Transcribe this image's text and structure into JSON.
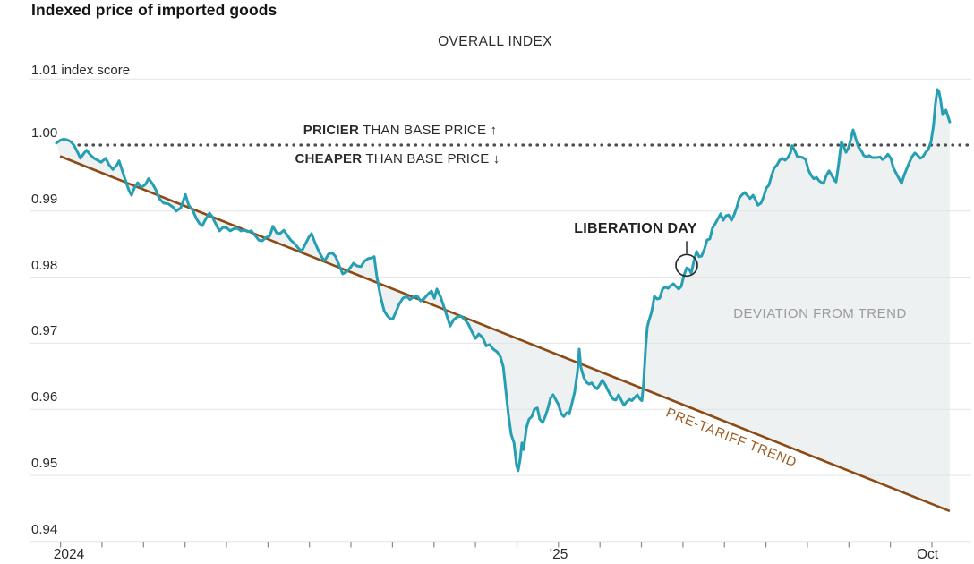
{
  "header": {
    "title": "Indexed price of imported goods",
    "subtitle": "OVERALL INDEX"
  },
  "annotations": {
    "pricier_bold": "PRICIER",
    "pricier_rest": " THAN BASE PRICE ↑",
    "cheaper_bold": "CHEAPER",
    "cheaper_rest": " THAN BASE PRICE ↓",
    "liberation_day": "LIBERATION DAY",
    "deviation": "DEVIATION FROM TREND",
    "pretariff": "PRE-TARIFF TREND"
  },
  "colors": {
    "index_line": "#269fb2",
    "trend_line": "#8c4a14",
    "trend_label": "#9c5a20",
    "deviation_fill": "#edf1f1",
    "gridline": "#e3e3e3",
    "dotted_base_line": "#4d4d4d",
    "axis_tick": "#8a8a8a",
    "marker_stroke": "#2b2b2b"
  },
  "y_axis": {
    "top_label": "1.01 index score",
    "top_value": 1.01,
    "ticks": [
      {
        "label": "1.00",
        "value": 1.0
      },
      {
        "label": "0.99",
        "value": 0.99
      },
      {
        "label": "0.98",
        "value": 0.98
      },
      {
        "label": "0.97",
        "value": 0.97
      },
      {
        "label": "0.96",
        "value": 0.96
      },
      {
        "label": "0.95",
        "value": 0.95
      },
      {
        "label": "0.94",
        "value": 0.94
      }
    ]
  },
  "x_axis": {
    "tick_months": [
      0,
      1,
      2,
      3,
      4,
      5,
      6,
      7,
      8,
      9,
      10,
      11,
      12,
      13,
      14,
      15,
      16,
      17,
      18,
      19,
      20,
      21
    ],
    "labels": [
      {
        "text": "2024",
        "month": 0.2
      },
      {
        "text": "’25",
        "month": 12.0
      },
      {
        "text": "Oct",
        "month": 20.9
      }
    ]
  },
  "chart_data": {
    "type": "line",
    "title": "Indexed price of imported goods",
    "subtitle": "OVERALL INDEX",
    "x_unit": "months since January 2024 (0 = Jan 2024, 12 = Jan 2025, 21 = Oct 2025)",
    "ylabel": "index score",
    "ylim": [
      0.94,
      1.01
    ],
    "base_price_value": 1.0,
    "grid": true,
    "liberation_day_marker": {
      "x": 15.09,
      "value": 0.9818
    },
    "series": [
      {
        "name": "Overall index",
        "color": "#269fb2",
        "x": [
          -0.1,
          -0.01,
          0.07,
          0.16,
          0.25,
          0.33,
          0.42,
          0.48,
          0.57,
          0.63,
          0.72,
          0.81,
          0.89,
          0.98,
          1.09,
          1.17,
          1.26,
          1.35,
          1.41,
          1.5,
          1.58,
          1.65,
          1.71,
          1.78,
          1.86,
          1.95,
          2.04,
          2.12,
          2.21,
          2.3,
          2.38,
          2.49,
          2.6,
          2.71,
          2.79,
          2.9,
          3.01,
          3.09,
          3.18,
          3.27,
          3.35,
          3.42,
          3.5,
          3.59,
          3.65,
          3.74,
          3.83,
          3.91,
          4.0,
          4.09,
          4.17,
          4.26,
          4.35,
          4.43,
          4.52,
          4.6,
          4.69,
          4.78,
          4.86,
          4.95,
          5.04,
          5.12,
          5.21,
          5.29,
          5.38,
          5.47,
          5.55,
          5.64,
          5.73,
          5.81,
          5.9,
          5.98,
          6.05,
          6.14,
          6.22,
          6.31,
          6.37,
          6.46,
          6.55,
          6.63,
          6.72,
          6.8,
          6.89,
          6.98,
          7.06,
          7.15,
          7.24,
          7.32,
          7.41,
          7.49,
          7.56,
          7.62,
          7.71,
          7.8,
          7.88,
          7.95,
          8.01,
          8.08,
          8.16,
          8.25,
          8.34,
          8.42,
          8.51,
          8.6,
          8.68,
          8.77,
          8.85,
          8.94,
          9.01,
          9.07,
          9.16,
          9.24,
          9.33,
          9.39,
          9.48,
          9.57,
          9.65,
          9.74,
          9.83,
          9.91,
          10.0,
          10.08,
          10.17,
          10.26,
          10.34,
          10.43,
          10.52,
          10.6,
          10.67,
          10.73,
          10.8,
          10.86,
          10.93,
          10.99,
          11.03,
          11.08,
          11.12,
          11.16,
          11.23,
          11.29,
          11.36,
          11.42,
          11.49,
          11.55,
          11.62,
          11.68,
          11.74,
          11.81,
          11.87,
          11.94,
          12.0,
          12.07,
          12.13,
          12.2,
          12.26,
          12.33,
          12.39,
          12.46,
          12.5,
          12.54,
          12.61,
          12.67,
          12.74,
          12.8,
          12.87,
          12.93,
          13.0,
          13.06,
          13.13,
          13.19,
          13.25,
          13.32,
          13.38,
          13.45,
          13.51,
          13.58,
          13.64,
          13.71,
          13.77,
          13.84,
          13.9,
          13.97,
          14.01,
          14.05,
          14.1,
          14.14,
          14.18,
          14.23,
          14.27,
          14.31,
          14.38,
          14.44,
          14.51,
          14.57,
          14.64,
          14.7,
          14.77,
          14.83,
          14.9,
          14.96,
          15.02,
          15.09,
          15.15,
          15.2,
          15.26,
          15.33,
          15.39,
          15.45,
          15.52,
          15.58,
          15.65,
          15.71,
          15.78,
          15.84,
          15.91,
          15.97,
          16.04,
          16.1,
          16.17,
          16.23,
          16.3,
          16.36,
          16.43,
          16.49,
          16.56,
          16.62,
          16.69,
          16.75,
          16.81,
          16.88,
          16.94,
          17.01,
          17.07,
          17.14,
          17.2,
          17.27,
          17.33,
          17.4,
          17.46,
          17.53,
          17.59,
          17.63,
          17.7,
          17.76,
          17.83,
          17.89,
          17.96,
          18.02,
          18.09,
          18.15,
          18.22,
          18.28,
          18.35,
          18.39,
          18.45,
          18.52,
          18.58,
          18.65,
          18.69,
          18.75,
          18.82,
          18.86,
          18.93,
          18.99,
          19.06,
          19.1,
          19.17,
          19.23,
          19.3,
          19.36,
          19.43,
          19.49,
          19.56,
          19.62,
          19.68,
          19.75,
          19.81,
          19.88,
          19.94,
          20.01,
          20.07,
          20.14,
          20.2,
          20.27,
          20.33,
          20.4,
          20.46,
          20.52,
          20.59,
          20.65,
          20.72,
          20.78,
          20.85,
          20.91,
          20.98,
          21.04,
          21.08,
          21.13,
          21.17,
          21.21,
          21.26,
          21.3,
          21.34,
          21.39,
          21.43
        ],
        "values": [
          1.0003,
          1.0007,
          1.0009,
          1.0008,
          1.0005,
          0.9999,
          0.9988,
          0.998,
          0.9988,
          0.9992,
          0.9985,
          0.998,
          0.9977,
          0.9974,
          0.998,
          0.997,
          0.9963,
          0.9969,
          0.9976,
          0.9959,
          0.9944,
          0.9931,
          0.9924,
          0.9935,
          0.9943,
          0.9936,
          0.994,
          0.9949,
          0.9942,
          0.9932,
          0.9919,
          0.9912,
          0.9911,
          0.9906,
          0.99,
          0.9905,
          0.9925,
          0.9909,
          0.9902,
          0.9889,
          0.9881,
          0.9878,
          0.9888,
          0.9897,
          0.9892,
          0.9881,
          0.987,
          0.9875,
          0.9875,
          0.987,
          0.9873,
          0.9874,
          0.987,
          0.9871,
          0.9869,
          0.987,
          0.9863,
          0.9856,
          0.9855,
          0.986,
          0.9862,
          0.9877,
          0.9867,
          0.9866,
          0.9871,
          0.9863,
          0.9856,
          0.9851,
          0.9844,
          0.9839,
          0.985,
          0.986,
          0.9866,
          0.9851,
          0.984,
          0.9829,
          0.9825,
          0.9835,
          0.9837,
          0.9831,
          0.9817,
          0.9805,
          0.9808,
          0.9814,
          0.9821,
          0.9817,
          0.9816,
          0.9824,
          0.9828,
          0.9829,
          0.9831,
          0.9802,
          0.9771,
          0.9749,
          0.9741,
          0.9737,
          0.9737,
          0.9747,
          0.9759,
          0.9768,
          0.9771,
          0.9766,
          0.977,
          0.9771,
          0.9764,
          0.9768,
          0.9774,
          0.9779,
          0.9768,
          0.9782,
          0.977,
          0.9755,
          0.9738,
          0.9726,
          0.9736,
          0.974,
          0.9741,
          0.9736,
          0.9729,
          0.9718,
          0.9707,
          0.9714,
          0.9709,
          0.9696,
          0.9698,
          0.9691,
          0.9687,
          0.968,
          0.9664,
          0.963,
          0.9589,
          0.9562,
          0.9549,
          0.9515,
          0.9507,
          0.9526,
          0.9549,
          0.9539,
          0.9572,
          0.9585,
          0.9589,
          0.96,
          0.9602,
          0.9585,
          0.958,
          0.9589,
          0.96,
          0.9617,
          0.9622,
          0.9614,
          0.9607,
          0.9593,
          0.9589,
          0.9595,
          0.9593,
          0.961,
          0.9626,
          0.9657,
          0.9691,
          0.9664,
          0.9648,
          0.9641,
          0.9638,
          0.964,
          0.9634,
          0.9631,
          0.9638,
          0.9644,
          0.9637,
          0.9629,
          0.9622,
          0.9615,
          0.9614,
          0.9622,
          0.9614,
          0.9606,
          0.9611,
          0.9615,
          0.9613,
          0.9618,
          0.9622,
          0.9615,
          0.9613,
          0.9637,
          0.9691,
          0.9724,
          0.9734,
          0.9744,
          0.9755,
          0.9771,
          0.9767,
          0.9768,
          0.9782,
          0.9785,
          0.9783,
          0.9787,
          0.979,
          0.9786,
          0.9782,
          0.9786,
          0.9802,
          0.9814,
          0.9812,
          0.9806,
          0.9823,
          0.9839,
          0.9831,
          0.9832,
          0.9843,
          0.9856,
          0.9858,
          0.9874,
          0.9881,
          0.9888,
          0.9896,
          0.9886,
          0.9893,
          0.9894,
          0.9886,
          0.9894,
          0.9906,
          0.992,
          0.9925,
          0.9928,
          0.9923,
          0.9919,
          0.9924,
          0.9917,
          0.9909,
          0.9912,
          0.9921,
          0.9935,
          0.9939,
          0.9954,
          0.9965,
          0.997,
          0.9977,
          0.998,
          0.9977,
          0.9981,
          0.9988,
          0.9999,
          0.9991,
          0.9982,
          0.9982,
          0.9981,
          0.9978,
          0.9963,
          0.9954,
          0.9949,
          0.9951,
          0.9946,
          0.9943,
          0.9942,
          0.9953,
          0.9961,
          0.9955,
          0.9947,
          0.9944,
          0.997,
          1.0005,
          1.0,
          0.9989,
          0.9996,
          1.0012,
          1.0023,
          1.0009,
          0.9997,
          0.9991,
          0.9984,
          0.9982,
          0.9984,
          0.9981,
          0.9981,
          0.9981,
          0.9982,
          0.9978,
          0.9981,
          0.9986,
          0.998,
          0.9966,
          0.9957,
          0.995,
          0.9942,
          0.9954,
          0.9965,
          0.9974,
          0.9982,
          0.9988,
          0.9985,
          0.998,
          0.9982,
          0.9989,
          0.9993,
          1.0005,
          1.003,
          1.006,
          1.0084,
          1.0081,
          1.0068,
          1.0046,
          1.0049,
          1.0053,
          1.0043,
          1.0035
        ]
      },
      {
        "name": "Pre-tariff trend",
        "color": "#8c4a14",
        "x": [
          -0.01,
          21.43
        ],
        "values": [
          0.9983,
          0.9446
        ]
      }
    ]
  }
}
